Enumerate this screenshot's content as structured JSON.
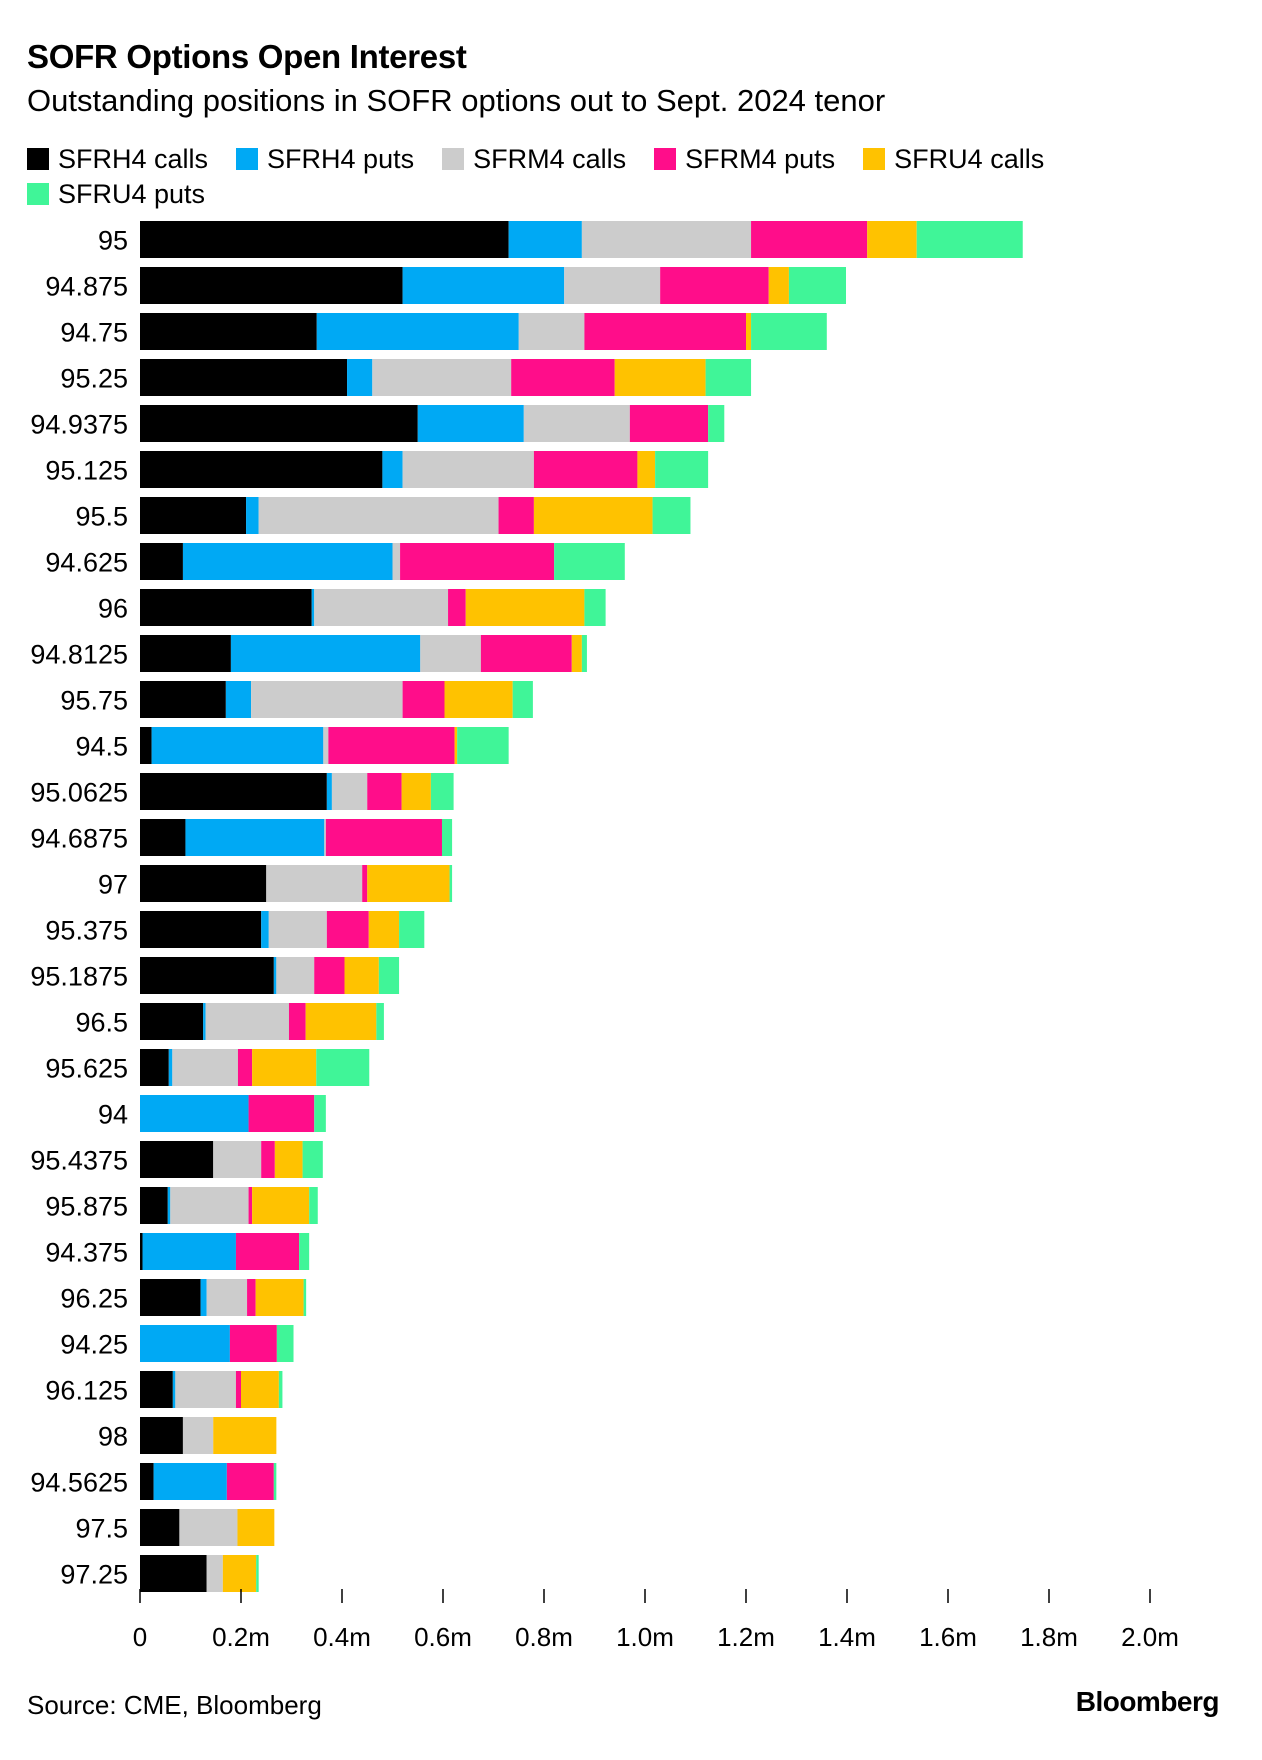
{
  "title": "SOFR Options Open Interest",
  "subtitle": "Outstanding positions in SOFR options out to Sept. 2024 tenor",
  "source": "Source: CME, Bloomberg",
  "brand": "Bloomberg",
  "chart_data": {
    "type": "bar",
    "orientation": "horizontal",
    "stacked": true,
    "grid": false,
    "legend_position": "top",
    "xlim": [
      0,
      2.0
    ],
    "x_unit": "m",
    "x_ticks": [
      0,
      0.2,
      0.4,
      0.6,
      0.8,
      1.0,
      1.2,
      1.4,
      1.6,
      1.8,
      2.0
    ],
    "x_tick_labels": [
      "0",
      "0.2m",
      "0.4m",
      "0.6m",
      "0.8m",
      "1.0m",
      "1.2m",
      "1.4m",
      "1.6m",
      "1.8m",
      "2.0m"
    ],
    "categories": [
      "95",
      "94.875",
      "94.75",
      "95.25",
      "94.9375",
      "95.125",
      "95.5",
      "94.625",
      "96",
      "94.8125",
      "95.75",
      "94.5",
      "95.0625",
      "94.6875",
      "97",
      "95.375",
      "95.1875",
      "96.5",
      "95.625",
      "94",
      "95.4375",
      "95.875",
      "94.375",
      "96.25",
      "94.25",
      "96.125",
      "98",
      "94.5625",
      "97.5",
      "97.25"
    ],
    "series": [
      {
        "name": "SFRH4 calls",
        "color": "#000000",
        "values": [
          0.73,
          0.52,
          0.35,
          0.41,
          0.55,
          0.48,
          0.21,
          0.085,
          0.34,
          0.18,
          0.17,
          0.023,
          0.37,
          0.09,
          0.25,
          0.24,
          0.265,
          0.125,
          0.057,
          0.0,
          0.145,
          0.055,
          0.005,
          0.12,
          0.0,
          0.065,
          0.085,
          0.027,
          0.078,
          0.132
        ]
      },
      {
        "name": "SFRH4 puts",
        "color": "#00a9f4",
        "values": [
          0.145,
          0.32,
          0.4,
          0.05,
          0.21,
          0.04,
          0.025,
          0.415,
          0.005,
          0.375,
          0.05,
          0.34,
          0.01,
          0.275,
          0.0,
          0.015,
          0.005,
          0.005,
          0.007,
          0.215,
          0.0,
          0.005,
          0.185,
          0.012,
          0.178,
          0.005,
          0.0,
          0.145,
          0.0,
          0.0
        ]
      },
      {
        "name": "SFRM4 calls",
        "color": "#cccccc",
        "values": [
          0.335,
          0.19,
          0.13,
          0.275,
          0.21,
          0.26,
          0.475,
          0.015,
          0.265,
          0.12,
          0.3,
          0.01,
          0.07,
          0.003,
          0.19,
          0.115,
          0.075,
          0.165,
          0.13,
          0.0,
          0.095,
          0.155,
          0.0,
          0.08,
          0.0,
          0.12,
          0.06,
          0.0,
          0.115,
          0.032
        ]
      },
      {
        "name": "SFRM4 puts",
        "color": "#ff0d8a",
        "values": [
          0.23,
          0.215,
          0.32,
          0.205,
          0.155,
          0.205,
          0.07,
          0.305,
          0.035,
          0.18,
          0.083,
          0.25,
          0.068,
          0.23,
          0.01,
          0.083,
          0.06,
          0.033,
          0.028,
          0.13,
          0.027,
          0.007,
          0.125,
          0.017,
          0.093,
          0.01,
          0.0,
          0.093,
          0.0,
          0.0
        ]
      },
      {
        "name": "SFRU4 calls",
        "color": "#ffc200",
        "values": [
          0.098,
          0.04,
          0.01,
          0.18,
          0.0,
          0.035,
          0.235,
          0.0,
          0.235,
          0.02,
          0.135,
          0.005,
          0.058,
          0.0,
          0.163,
          0.06,
          0.068,
          0.14,
          0.127,
          0.0,
          0.055,
          0.113,
          0.0,
          0.095,
          0.0,
          0.075,
          0.125,
          0.0,
          0.073,
          0.066
        ]
      },
      {
        "name": "SFRU4 puts",
        "color": "#40f598",
        "values": [
          0.21,
          0.113,
          0.15,
          0.09,
          0.032,
          0.105,
          0.075,
          0.14,
          0.042,
          0.01,
          0.04,
          0.102,
          0.045,
          0.02,
          0.005,
          0.05,
          0.04,
          0.015,
          0.105,
          0.023,
          0.04,
          0.017,
          0.02,
          0.005,
          0.033,
          0.007,
          0.0,
          0.005,
          0.0,
          0.005
        ]
      }
    ]
  }
}
